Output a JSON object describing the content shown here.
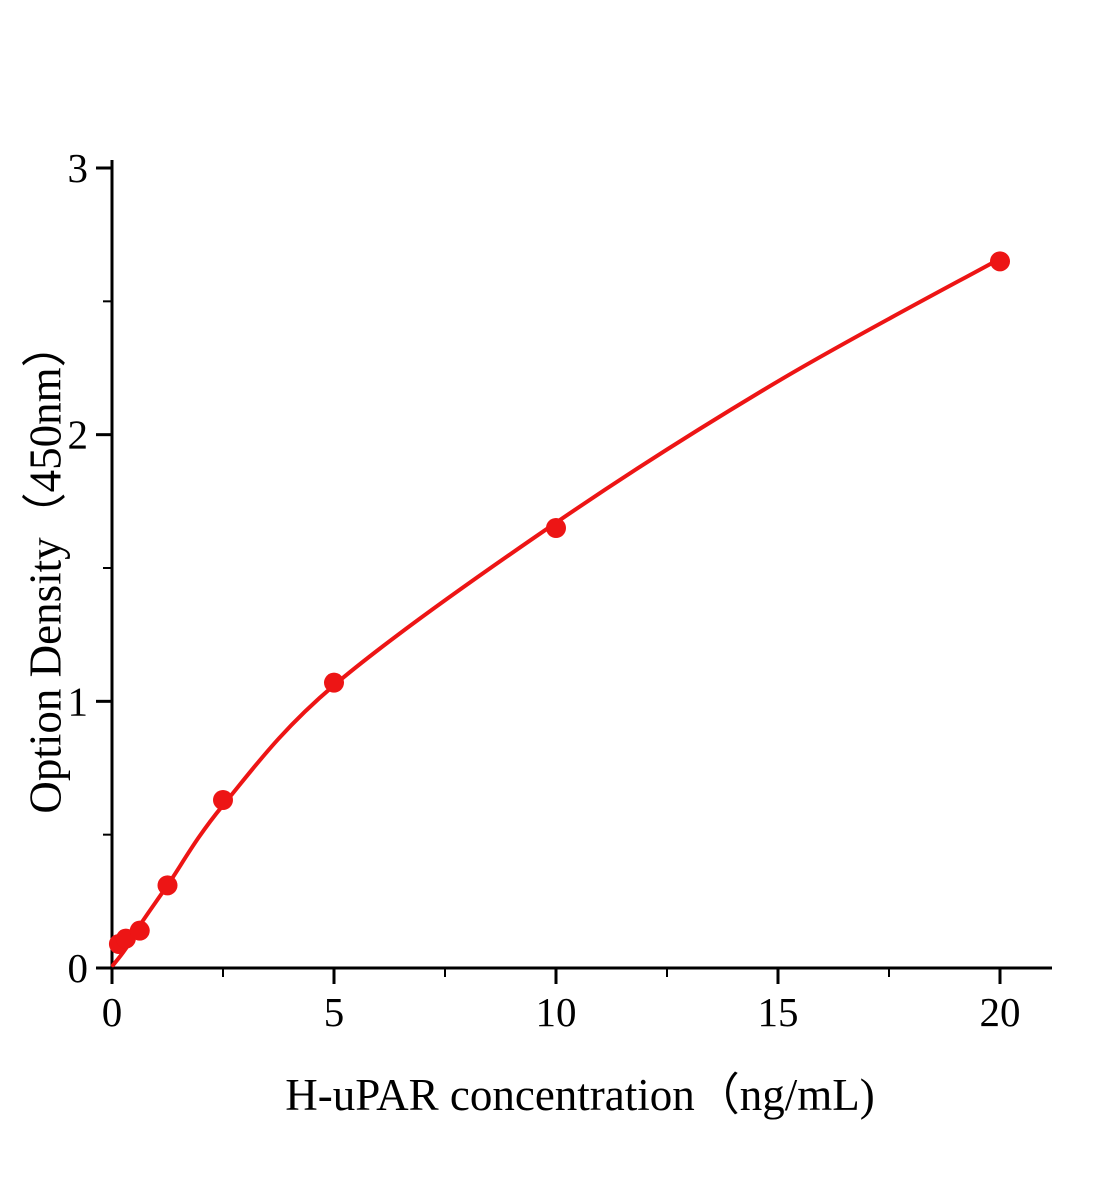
{
  "chart_data": {
    "type": "scatter",
    "title": "",
    "xlabel": "H-uPAR concentration（ng/mL)",
    "ylabel": "Option Density（450nm）",
    "x": [
      0.156,
      0.3125,
      0.625,
      1.25,
      2.5,
      5,
      10,
      20
    ],
    "y": [
      0.09,
      0.11,
      0.14,
      0.31,
      0.63,
      1.07,
      1.65,
      2.65
    ],
    "curve_points": [
      [
        0.02,
        0.01
      ],
      [
        0.3,
        0.07
      ],
      [
        0.625,
        0.16
      ],
      [
        1.25,
        0.31
      ],
      [
        2.5,
        0.61
      ],
      [
        5,
        1.06
      ],
      [
        10,
        1.67
      ],
      [
        15,
        2.2
      ],
      [
        20,
        2.66
      ]
    ],
    "xlim": [
      0,
      21
    ],
    "ylim": [
      0,
      3
    ],
    "x_ticks": [
      0,
      5,
      10,
      15,
      20
    ],
    "y_ticks": [
      0,
      1,
      2,
      3
    ],
    "x_minor_ticks": [
      2.5,
      7.5,
      12.5,
      17.5
    ],
    "y_minor_ticks": [
      0.5,
      1.5,
      2.5
    ],
    "grid": false,
    "legend": "none",
    "marker": "circle",
    "point_color": "#ed1515",
    "line_color": "#ed1515",
    "axis_color": "#000000"
  }
}
